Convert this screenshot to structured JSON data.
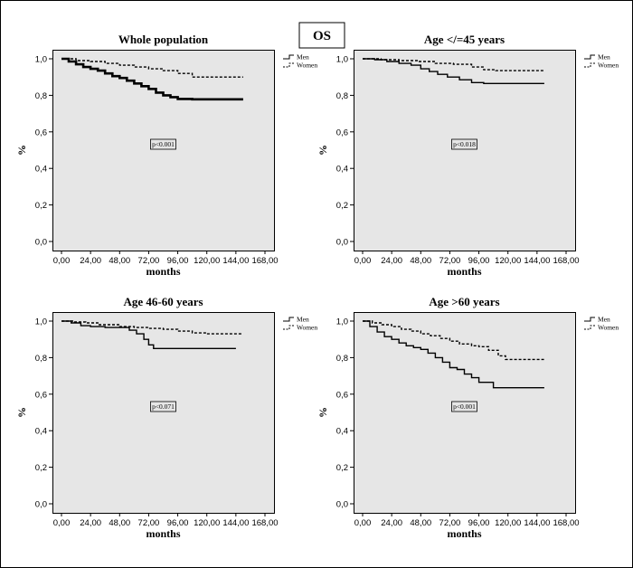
{
  "figure_label": "OS",
  "chart_data": [
    {
      "type": "line",
      "title": "Whole population",
      "xlabel": "months",
      "ylabel": "%",
      "xlim": [
        0,
        168
      ],
      "ylim": [
        0,
        1.0
      ],
      "xticks": [
        "0,00",
        "24,00",
        "48,00",
        "72,00",
        "96,00",
        "120,00",
        "144,00",
        "168,00"
      ],
      "yticks": [
        "0,0",
        "0,2",
        "0,4",
        "0,6",
        "0,8",
        "1,0"
      ],
      "legend": [
        "Men",
        "Women"
      ],
      "legend_position": "top-right-outside",
      "annotation": "p<0.001",
      "series": [
        {
          "name": "Men",
          "style": "solid",
          "x": [
            0,
            6,
            12,
            18,
            24,
            30,
            36,
            42,
            48,
            54,
            60,
            66,
            72,
            78,
            84,
            90,
            96,
            108,
            120,
            132,
            150
          ],
          "y": [
            1.0,
            0.985,
            0.97,
            0.955,
            0.945,
            0.935,
            0.92,
            0.905,
            0.895,
            0.88,
            0.865,
            0.85,
            0.835,
            0.815,
            0.8,
            0.79,
            0.78,
            0.778,
            0.778,
            0.778,
            0.778
          ]
        },
        {
          "name": "Women",
          "style": "dashed",
          "x": [
            0,
            12,
            24,
            36,
            48,
            60,
            72,
            84,
            96,
            108,
            120,
            132,
            150
          ],
          "y": [
            1.0,
            0.99,
            0.985,
            0.975,
            0.965,
            0.955,
            0.945,
            0.935,
            0.92,
            0.9,
            0.9,
            0.9,
            0.9
          ]
        }
      ]
    },
    {
      "type": "line",
      "title": "Age </=45 years",
      "xlabel": "months",
      "ylabel": "%",
      "xlim": [
        0,
        168
      ],
      "ylim": [
        0,
        1.0
      ],
      "xticks": [
        "0,00",
        "24,00",
        "48,00",
        "72,00",
        "96,00",
        "120,00",
        "144,00",
        "168,00"
      ],
      "yticks": [
        "0,0",
        "0,2",
        "0,4",
        "0,6",
        "0,8",
        "1,0"
      ],
      "legend": [
        "Men",
        "Women"
      ],
      "legend_position": "top-right-outside",
      "annotation": "p<0.018",
      "series": [
        {
          "name": "Men",
          "style": "solid",
          "x": [
            0,
            10,
            20,
            30,
            40,
            48,
            55,
            62,
            70,
            80,
            90,
            100,
            120,
            150
          ],
          "y": [
            1.0,
            0.995,
            0.985,
            0.975,
            0.965,
            0.945,
            0.93,
            0.915,
            0.9,
            0.885,
            0.87,
            0.865,
            0.865,
            0.865
          ]
        },
        {
          "name": "Women",
          "style": "dashed",
          "x": [
            0,
            15,
            30,
            45,
            60,
            75,
            90,
            100,
            110,
            130,
            150
          ],
          "y": [
            1.0,
            0.995,
            0.99,
            0.985,
            0.975,
            0.97,
            0.955,
            0.94,
            0.935,
            0.935,
            0.935
          ]
        }
      ]
    },
    {
      "type": "line",
      "title": "Age 46-60 years",
      "xlabel": "months",
      "ylabel": "%",
      "xlim": [
        0,
        168
      ],
      "ylim": [
        0,
        1.0
      ],
      "xticks": [
        "0,00",
        "24,00",
        "48,00",
        "72,00",
        "96,00",
        "120,00",
        "144,00",
        "168,00"
      ],
      "yticks": [
        "0,0",
        "0,2",
        "0,4",
        "0,6",
        "0,8",
        "1,0"
      ],
      "legend": [
        "Men",
        "Women"
      ],
      "legend_position": "top-right-outside",
      "annotation": "p<0.071",
      "series": [
        {
          "name": "Men",
          "style": "solid",
          "x": [
            0,
            8,
            16,
            24,
            36,
            48,
            56,
            62,
            68,
            72,
            76,
            90,
            110,
            144
          ],
          "y": [
            1.0,
            0.99,
            0.975,
            0.97,
            0.965,
            0.965,
            0.95,
            0.93,
            0.9,
            0.87,
            0.85,
            0.85,
            0.85,
            0.85
          ]
        },
        {
          "name": "Women",
          "style": "dashed",
          "x": [
            0,
            10,
            20,
            30,
            48,
            60,
            72,
            84,
            96,
            108,
            120,
            132,
            150
          ],
          "y": [
            1.0,
            0.995,
            0.99,
            0.98,
            0.97,
            0.965,
            0.96,
            0.955,
            0.945,
            0.935,
            0.93,
            0.93,
            0.93
          ]
        }
      ]
    },
    {
      "type": "line",
      "title": "Age >60 years",
      "xlabel": "months",
      "ylabel": "%",
      "xlim": [
        0,
        168
      ],
      "ylim": [
        0,
        1.0
      ],
      "xticks": [
        "0,00",
        "24,00",
        "48,00",
        "72,00",
        "96,00",
        "120,00",
        "144,00",
        "168,00"
      ],
      "yticks": [
        "0,0",
        "0,2",
        "0,4",
        "0,6",
        "0,8",
        "1,0"
      ],
      "legend": [
        "Men",
        "Women"
      ],
      "legend_position": "top-right-outside",
      "annotation": "p<0.001",
      "series": [
        {
          "name": "Men",
          "style": "solid",
          "x": [
            0,
            6,
            12,
            18,
            24,
            30,
            36,
            42,
            48,
            54,
            60,
            66,
            72,
            78,
            84,
            90,
            96,
            108,
            120,
            150
          ],
          "y": [
            1.0,
            0.97,
            0.94,
            0.915,
            0.9,
            0.88,
            0.865,
            0.855,
            0.845,
            0.825,
            0.8,
            0.775,
            0.745,
            0.735,
            0.71,
            0.69,
            0.665,
            0.635,
            0.635,
            0.635
          ]
        },
        {
          "name": "Women",
          "style": "dashed",
          "x": [
            0,
            8,
            16,
            24,
            32,
            40,
            48,
            56,
            64,
            72,
            80,
            90,
            96,
            104,
            112,
            118,
            130,
            150
          ],
          "y": [
            1.0,
            0.99,
            0.98,
            0.97,
            0.955,
            0.945,
            0.93,
            0.92,
            0.905,
            0.89,
            0.875,
            0.865,
            0.86,
            0.84,
            0.81,
            0.79,
            0.79,
            0.79
          ]
        }
      ]
    }
  ]
}
